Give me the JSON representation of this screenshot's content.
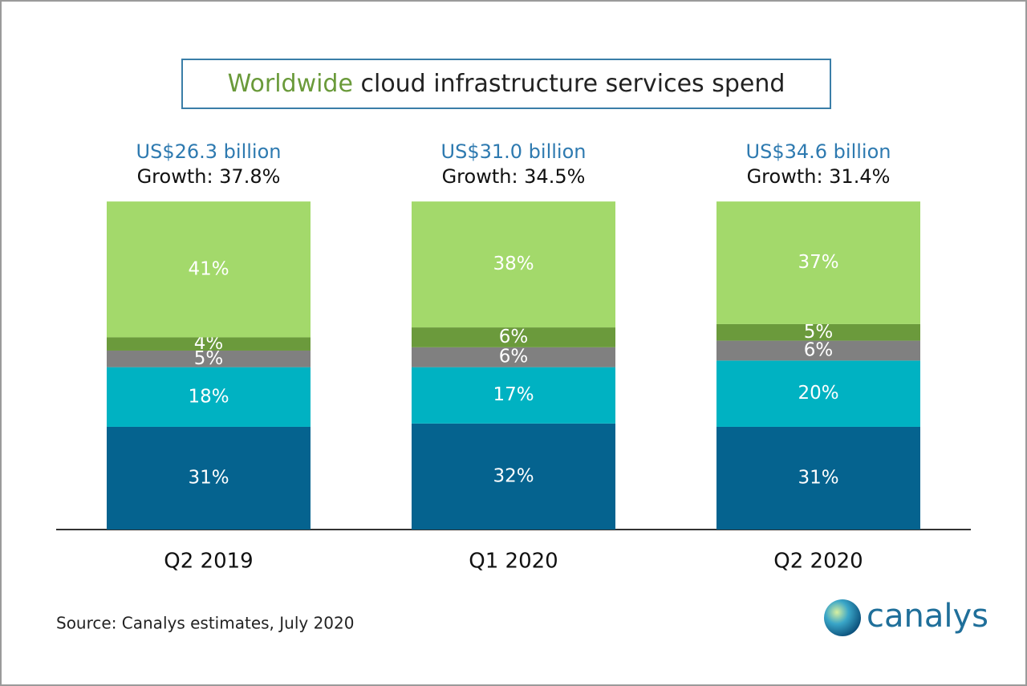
{
  "chart_data": {
    "type": "stacked_bar",
    "title": [
      "Worldwide",
      "cloud infrastructure services spend"
    ],
    "categories": [
      "Q2 2019",
      "Q1 2020",
      "Q2 2020"
    ],
    "annotations": [
      {
        "spend": "US$26.3 billion",
        "growth": "Growth: 37.8%"
      },
      {
        "spend": "US$31.0 billion",
        "growth": "Growth: 34.5%"
      },
      {
        "spend": "US$34.6 billion",
        "growth": "Growth: 31.4%"
      }
    ],
    "series": [
      {
        "color": "#05638f",
        "values": [
          31,
          32,
          31
        ],
        "value_labels": [
          "31%",
          "32%",
          "31%"
        ]
      },
      {
        "color": "#00b2c2",
        "values": [
          18,
          17,
          20
        ],
        "value_labels": [
          "18%",
          "17%",
          "20%"
        ]
      },
      {
        "color": "#808080",
        "values": [
          5,
          6,
          6
        ],
        "value_labels": [
          "5%",
          "6%",
          "6%"
        ]
      },
      {
        "color": "#6b9a3c",
        "values": [
          4,
          6,
          5
        ],
        "value_labels": [
          "4%",
          "6%",
          "5%"
        ]
      },
      {
        "color": "#a3d96b",
        "values": [
          41,
          38,
          37
        ],
        "value_labels": [
          "41%",
          "38%",
          "37%"
        ]
      }
    ],
    "ylim": [
      0,
      100
    ],
    "source": "Source: Canalys estimates, July 2020",
    "brand": "canalys"
  }
}
